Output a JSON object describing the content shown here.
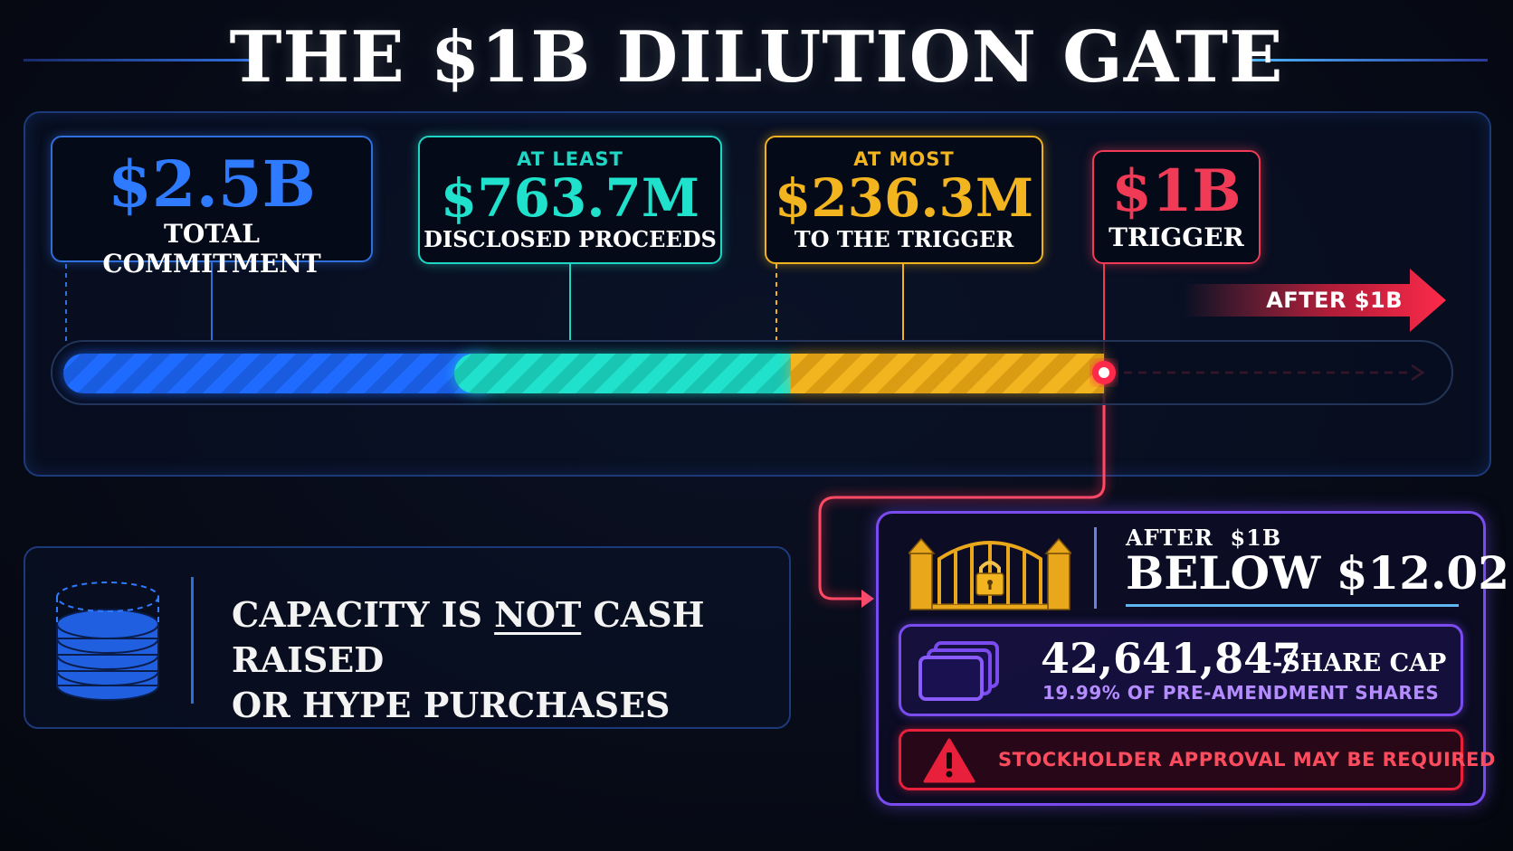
{
  "title": "THE $1B DILUTION GATE",
  "colors": {
    "blue": "#1f6bff",
    "teal": "#20e2cc",
    "gold": "#f2b41f",
    "red": "#f03a56",
    "purple": "#7a4cf0"
  },
  "cards": {
    "total": {
      "value": "$2.5B",
      "label": "TOTAL COMMITMENT"
    },
    "disclosed": {
      "qualifier": "AT LEAST",
      "value": "$763.7M",
      "label": "DISCLOSED PROCEEDS"
    },
    "remaining": {
      "qualifier": "AT MOST",
      "value": "$236.3M",
      "label": "TO THE TRIGGER"
    },
    "trigger": {
      "value": "$1B",
      "label": "TRIGGER"
    }
  },
  "after_arrow_label": "AFTER $1B",
  "info": {
    "line1_pre": "CAPACITY IS ",
    "line1_emph": "NOT",
    "line1_post": " CASH RAISED",
    "line2": "OR HYPE PURCHASES"
  },
  "gate": {
    "small": "AFTER  $1B",
    "price": "BELOW $12.02",
    "cap_number": "42,641,847",
    "cap_suffix": "-SHARE CAP",
    "cap_sub": "19.99% OF PRE-AMENDMENT SHARES",
    "warning": "STOCKHOLDER APPROVAL MAY BE REQUIRED"
  },
  "icons": {
    "coins": "coin-stack-icon",
    "gate": "locked-gate-icon",
    "shares": "share-certificates-icon",
    "warning": "warning-triangle-icon"
  }
}
